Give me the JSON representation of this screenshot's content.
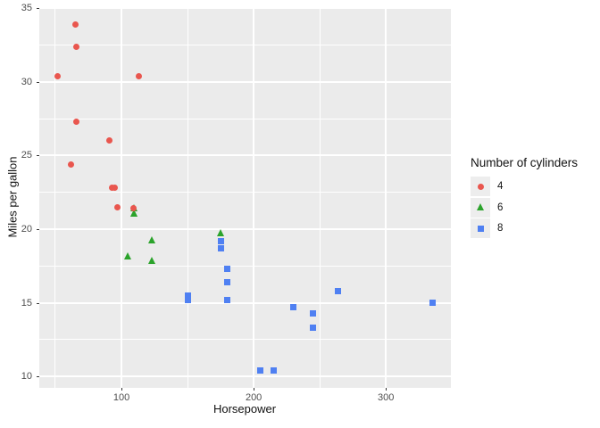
{
  "chart_data": {
    "type": "scatter",
    "title": "",
    "xlabel": "Horsepower",
    "ylabel": "Miles per gallon",
    "xlim": [
      37.85,
      349.15
    ],
    "ylim": [
      9.225,
      35.075
    ],
    "x_ticks": [
      100,
      200,
      300
    ],
    "x_minor_ticks": [
      50,
      150,
      250,
      350
    ],
    "y_ticks": [
      10,
      15,
      20,
      25,
      30,
      35
    ],
    "y_minor_ticks": [
      12.5,
      17.5,
      22.5,
      27.5,
      32.5
    ],
    "grid": true,
    "panel_background": "#EBEBEB",
    "grid_color": "#FFFFFF",
    "legend": {
      "title": "Number of cylinders",
      "position": "right"
    },
    "series": [
      {
        "name": "4",
        "marker": "circle",
        "color": "#E9564E",
        "points": [
          [
            52,
            30.4
          ],
          [
            62,
            24.4
          ],
          [
            65,
            33.9
          ],
          [
            66,
            32.4
          ],
          [
            66,
            27.3
          ],
          [
            91,
            26.0
          ],
          [
            93,
            22.8
          ],
          [
            95,
            22.8
          ],
          [
            97,
            21.5
          ],
          [
            109,
            21.4
          ],
          [
            113,
            30.4
          ]
        ]
      },
      {
        "name": "6",
        "marker": "triangle",
        "color": "#2BA32B",
        "points": [
          [
            105,
            18.1
          ],
          [
            110,
            21.0
          ],
          [
            110,
            21.0
          ],
          [
            110,
            21.4
          ],
          [
            123,
            19.2
          ],
          [
            123,
            17.8
          ],
          [
            175,
            19.7
          ]
        ]
      },
      {
        "name": "8",
        "marker": "square",
        "color": "#4F80F2",
        "points": [
          [
            150,
            15.5
          ],
          [
            150,
            15.2
          ],
          [
            175,
            18.7
          ],
          [
            175,
            19.2
          ],
          [
            180,
            16.4
          ],
          [
            180,
            17.3
          ],
          [
            180,
            15.2
          ],
          [
            205,
            10.4
          ],
          [
            215,
            10.4
          ],
          [
            230,
            14.7
          ],
          [
            245,
            14.3
          ],
          [
            245,
            13.3
          ],
          [
            264,
            15.8
          ],
          [
            335,
            15.0
          ]
        ]
      }
    ]
  }
}
